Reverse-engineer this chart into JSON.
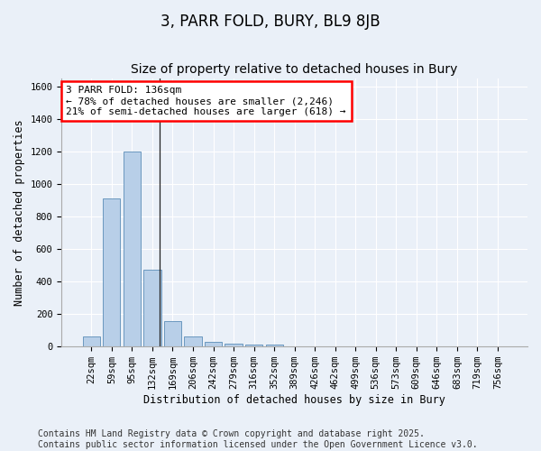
{
  "title": "3, PARR FOLD, BURY, BL9 8JB",
  "subtitle": "Size of property relative to detached houses in Bury",
  "xlabel": "Distribution of detached houses by size in Bury",
  "ylabel": "Number of detached properties",
  "categories": [
    "22sqm",
    "59sqm",
    "95sqm",
    "132sqm",
    "169sqm",
    "206sqm",
    "242sqm",
    "279sqm",
    "316sqm",
    "352sqm",
    "389sqm",
    "426sqm",
    "462sqm",
    "499sqm",
    "536sqm",
    "573sqm",
    "609sqm",
    "646sqm",
    "683sqm",
    "719sqm",
    "756sqm"
  ],
  "values": [
    60,
    910,
    1200,
    475,
    155,
    62,
    30,
    20,
    10,
    13,
    0,
    0,
    0,
    0,
    0,
    0,
    0,
    0,
    0,
    0,
    0
  ],
  "bar_color": "#b8cfe8",
  "bar_edge_color": "#5b8db8",
  "ylim": [
    0,
    1650
  ],
  "yticks": [
    0,
    200,
    400,
    600,
    800,
    1000,
    1200,
    1400,
    1600
  ],
  "annotation_text": "3 PARR FOLD: 136sqm\n← 78% of detached houses are smaller (2,246)\n21% of semi-detached houses are larger (618) →",
  "vline_x_index": 3.38,
  "background_color": "#eaf0f8",
  "plot_background_color": "#eaf0f8",
  "footer_line1": "Contains HM Land Registry data © Crown copyright and database right 2025.",
  "footer_line2": "Contains public sector information licensed under the Open Government Licence v3.0.",
  "grid_color": "#ffffff",
  "title_fontsize": 12,
  "subtitle_fontsize": 10,
  "axis_label_fontsize": 8.5,
  "tick_fontsize": 7.5,
  "annotation_fontsize": 8,
  "footer_fontsize": 7
}
